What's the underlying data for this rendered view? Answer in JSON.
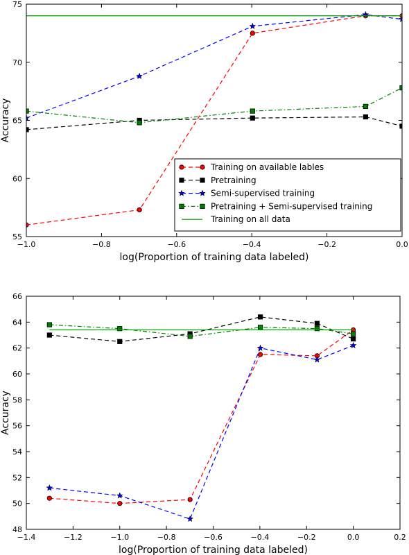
{
  "chart_data": [
    {
      "type": "line",
      "title": "",
      "xlabel": "log(Proportion of training data labeled)",
      "ylabel": "Accuracy",
      "xlim": [
        -1.0,
        0.0
      ],
      "ylim": [
        55,
        75
      ],
      "xticks": [
        -1.0,
        -0.8,
        -0.6,
        -0.4,
        -0.2,
        0.0
      ],
      "xtick_labels": [
        "−1.0",
        "−0.8",
        "−0.6",
        "−0.4",
        "−0.2",
        "0.0"
      ],
      "yticks": [
        55,
        60,
        65,
        70,
        75
      ],
      "ytick_labels": [
        "55",
        "60",
        "65",
        "70",
        "75"
      ],
      "grid": false,
      "legend_position": "lower-right",
      "series": [
        {
          "name": "Training on available lables",
          "color": "#ff0000",
          "style": "dashed",
          "marker": "circle",
          "x": [
            -1.0,
            -0.699,
            -0.398,
            -0.097,
            0.0
          ],
          "y": [
            56.0,
            57.3,
            72.5,
            74.0,
            74.0
          ]
        },
        {
          "name": "Pretraining",
          "color": "#000000",
          "style": "dashed",
          "marker": "square",
          "x": [
            -1.0,
            -0.699,
            -0.398,
            -0.097,
            0.0
          ],
          "y": [
            64.2,
            65.0,
            65.2,
            65.3,
            64.5
          ]
        },
        {
          "name": "Semi-supervised training",
          "color": "#0000ff",
          "style": "dashed",
          "marker": "star",
          "x": [
            -1.0,
            -0.699,
            -0.398,
            -0.097,
            0.0
          ],
          "y": [
            65.2,
            68.8,
            73.1,
            74.1,
            73.7
          ]
        },
        {
          "name": "Pretraining + Semi-supervised training",
          "color": "#008000",
          "style": "dashdot",
          "marker": "square",
          "x": [
            -1.0,
            -0.699,
            -0.398,
            -0.097,
            0.0
          ],
          "y": [
            65.8,
            64.8,
            65.8,
            66.2,
            67.8
          ]
        },
        {
          "name": "Training on all data",
          "color": "#00a000",
          "style": "solid",
          "marker": "none",
          "x": [
            -1.0,
            0.0
          ],
          "y": [
            74.0,
            74.0
          ]
        }
      ]
    },
    {
      "type": "line",
      "title": "",
      "xlabel": "log(Proportion of training data labeled)",
      "ylabel": "Accuracy",
      "xlim": [
        -1.4,
        0.2
      ],
      "ylim": [
        48,
        66
      ],
      "xticks": [
        -1.4,
        -1.2,
        -1.0,
        -0.8,
        -0.6,
        -0.4,
        -0.2,
        0.0,
        0.2
      ],
      "xtick_labels": [
        "−1.4",
        "−1.2",
        "−1.0",
        "−0.8",
        "−0.6",
        "−0.4",
        "−0.2",
        "0.0",
        "0.2"
      ],
      "yticks": [
        48,
        50,
        52,
        54,
        56,
        58,
        60,
        62,
        64,
        66
      ],
      "ytick_labels": [
        "48",
        "50",
        "52",
        "54",
        "56",
        "58",
        "60",
        "62",
        "64",
        "66"
      ],
      "grid": false,
      "series": [
        {
          "color": "#ff0000",
          "style": "dashed",
          "marker": "circle",
          "x": [
            -1.301,
            -1.0,
            -0.699,
            -0.398,
            -0.155,
            0.0
          ],
          "y": [
            50.4,
            50.0,
            50.3,
            61.5,
            61.4,
            63.4
          ]
        },
        {
          "color": "#000000",
          "style": "dashed",
          "marker": "square",
          "x": [
            -1.301,
            -1.0,
            -0.699,
            -0.398,
            -0.155,
            0.0
          ],
          "y": [
            63.0,
            62.5,
            63.1,
            64.4,
            63.9,
            62.7
          ]
        },
        {
          "color": "#0000ff",
          "style": "dashed",
          "marker": "star",
          "x": [
            -1.301,
            -1.0,
            -0.699,
            -0.398,
            -0.155,
            0.0
          ],
          "y": [
            51.2,
            50.6,
            48.8,
            62.0,
            61.1,
            62.2
          ]
        },
        {
          "color": "#008000",
          "style": "dashdot",
          "marker": "square",
          "x": [
            -1.301,
            -1.0,
            -0.699,
            -0.398,
            -0.155,
            0.0
          ],
          "y": [
            63.8,
            63.5,
            62.9,
            63.6,
            63.5,
            63.1
          ]
        },
        {
          "color": "#00a000",
          "style": "solid",
          "marker": "none",
          "x": [
            -1.301,
            0.0
          ],
          "y": [
            63.4,
            63.4
          ]
        }
      ]
    }
  ]
}
